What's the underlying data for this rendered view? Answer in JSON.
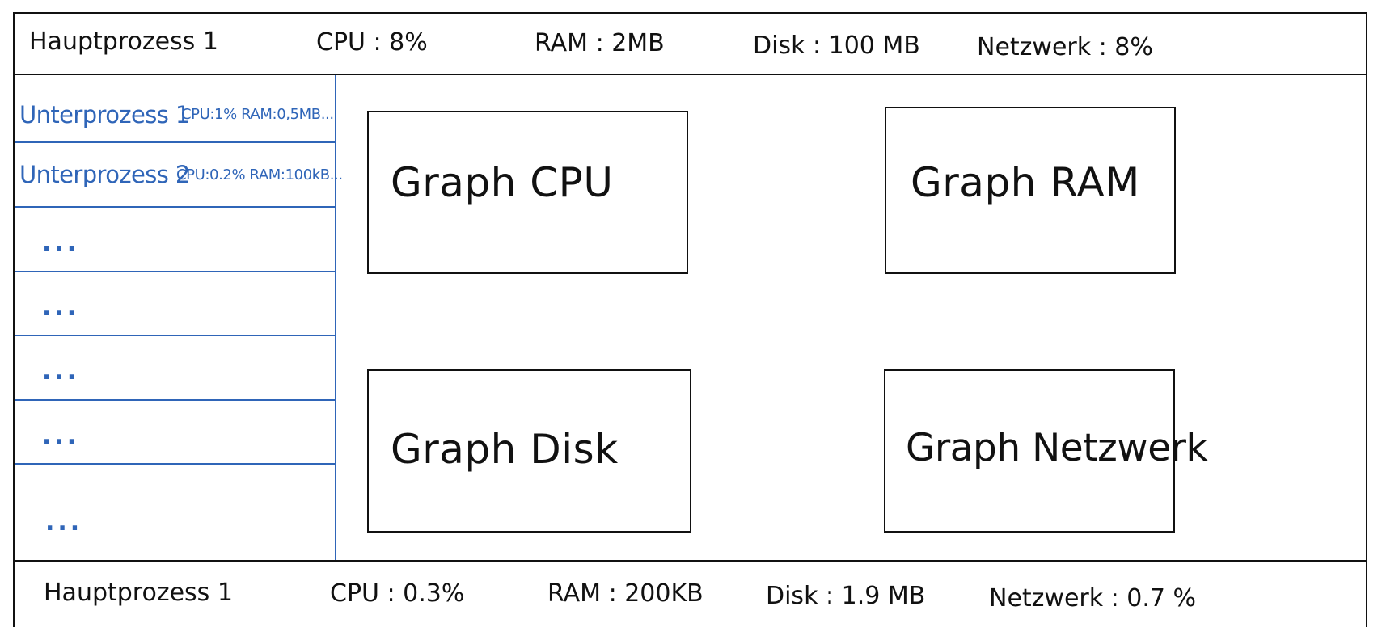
{
  "top_process": {
    "name": "Hauptprozess 1",
    "cpu": "CPU : 8%",
    "ram": "RAM : 2MB",
    "disk": "Disk : 100 MB",
    "network": "Netzwerk : 8%"
  },
  "sidebar": {
    "items": [
      {
        "name": "Unterprozess 1",
        "stats": "CPU:1% RAM:0,5MB..."
      },
      {
        "name": "Unterprozess 2",
        "stats": "CPU:0.2% RAM:100kB..."
      },
      {
        "label": "..."
      },
      {
        "label": "..."
      },
      {
        "label": "..."
      },
      {
        "label": "..."
      },
      {
        "label": "..."
      }
    ]
  },
  "graphs": {
    "cpu": "Graph CPU",
    "ram": "Graph RAM",
    "disk": "Graph Disk",
    "network": "Graph Netzwerk"
  },
  "bottom_process": {
    "name": "Hauptprozess 1",
    "cpu": "CPU : 0.3%",
    "ram": "RAM : 200KB",
    "disk": "Disk : 1.9 MB",
    "network": "Netzwerk : 0.7 %"
  },
  "colors": {
    "sidebar_blue": "#2f65b8",
    "line_black": "#111111",
    "background": "#ffffff"
  }
}
